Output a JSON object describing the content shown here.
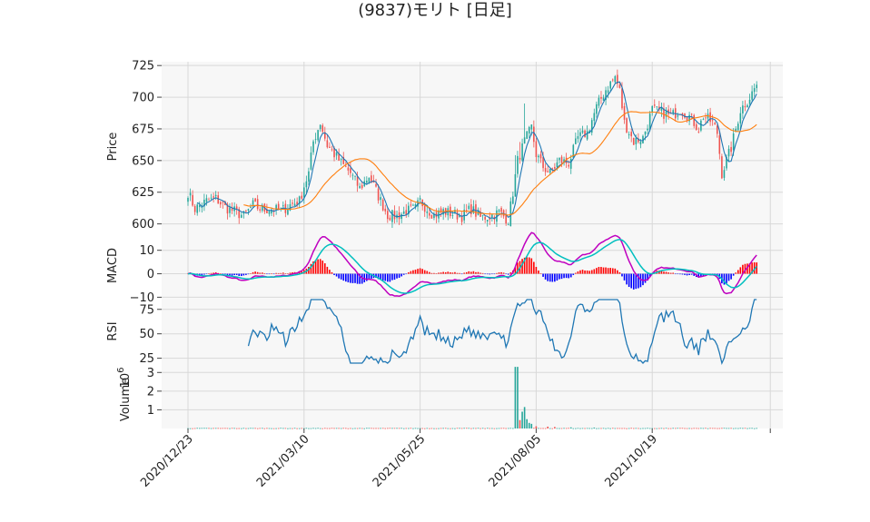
{
  "title": "(9837)モリト [日足]",
  "chart_data": {
    "type": "candlestick",
    "title": "(9837)モリト [日足]",
    "x_tick_labels": [
      "2020/12/23",
      "2021/03/10",
      "2021/05/25",
      "2021/08/05",
      "2021/10/19"
    ],
    "x_tick_index": [
      0,
      50,
      100,
      150,
      200
    ],
    "n_days": 246,
    "panels": {
      "price": {
        "ylabel": "Price",
        "ylim": [
          594,
          728
        ],
        "yticks": [
          600,
          625,
          650,
          675,
          700,
          725
        ],
        "anchors": [
          [
            0,
            625
          ],
          [
            3,
            612
          ],
          [
            8,
            618
          ],
          [
            12,
            620
          ],
          [
            16,
            613
          ],
          [
            20,
            610
          ],
          [
            24,
            606
          ],
          [
            28,
            615
          ],
          [
            32,
            611
          ],
          [
            36,
            612
          ],
          [
            40,
            610
          ],
          [
            44,
            615
          ],
          [
            48,
            618
          ],
          [
            50,
            630
          ],
          [
            52,
            640
          ],
          [
            54,
            665
          ],
          [
            57,
            680
          ],
          [
            60,
            662
          ],
          [
            63,
            655
          ],
          [
            66,
            648
          ],
          [
            70,
            640
          ],
          [
            74,
            628
          ],
          [
            78,
            638
          ],
          [
            82,
            622
          ],
          [
            86,
            607
          ],
          [
            90,
            606
          ],
          [
            94,
            610
          ],
          [
            98,
            612
          ],
          [
            100,
            618
          ],
          [
            103,
            612
          ],
          [
            106,
            607
          ],
          [
            110,
            610
          ],
          [
            114,
            608
          ],
          [
            118,
            606
          ],
          [
            122,
            612
          ],
          [
            126,
            605
          ],
          [
            130,
            606
          ],
          [
            134,
            609
          ],
          [
            138,
            603
          ],
          [
            140,
            625
          ],
          [
            142,
            650
          ],
          [
            145,
            665
          ],
          [
            148,
            676
          ],
          [
            150,
            655
          ],
          [
            153,
            645
          ],
          [
            156,
            640
          ],
          [
            160,
            650
          ],
          [
            164,
            648
          ],
          [
            168,
            668
          ],
          [
            172,
            672
          ],
          [
            176,
            692
          ],
          [
            180,
            706
          ],
          [
            184,
            716
          ],
          [
            186,
            705
          ],
          [
            188,
            680
          ],
          [
            192,
            665
          ],
          [
            196,
            668
          ],
          [
            200,
            690
          ],
          [
            204,
            688
          ],
          [
            208,
            685
          ],
          [
            212,
            690
          ],
          [
            216,
            685
          ],
          [
            220,
            675
          ],
          [
            222,
            685
          ],
          [
            226,
            680
          ],
          [
            228,
            672
          ],
          [
            230,
            640
          ],
          [
            234,
            660
          ],
          [
            238,
            690
          ],
          [
            242,
            700
          ],
          [
            245,
            710
          ]
        ],
        "ma_fast_period": 5,
        "ma_slow_period": 25,
        "colors": {
          "up": "#26a69a",
          "down": "#ef5350",
          "ma_fast": "#1f77b4",
          "ma_slow": "#ff7f0e"
        }
      },
      "macd": {
        "ylabel": "MACD",
        "ylim": [
          -11,
          18
        ],
        "yticks": [
          -10,
          0,
          10
        ],
        "colors": {
          "macd": "#bf00bf",
          "signal": "#00bfbf",
          "hist_pos": "#ff0000",
          "hist_neg": "#0000ff"
        }
      },
      "rsi": {
        "ylabel": "RSI",
        "ylim": [
          20,
          85
        ],
        "yticks": [
          25,
          50,
          75
        ],
        "period": 14,
        "color": "#1f77b4"
      },
      "volume": {
        "ylabel": "Volume",
        "multiplier_base": "10",
        "multiplier_exp": "6",
        "ylim": [
          0,
          3.5
        ],
        "yticks": [
          1,
          2,
          3
        ],
        "baseline_millions": 0.02,
        "spikes": [
          [
            141,
            3.3
          ],
          [
            142,
            3.3
          ],
          [
            143,
            0.45
          ],
          [
            144,
            0.9
          ],
          [
            145,
            1.15
          ],
          [
            146,
            0.5
          ],
          [
            147,
            0.3
          ],
          [
            148,
            0.25
          ],
          [
            150,
            0.12
          ],
          [
            155,
            0.1
          ],
          [
            158,
            0.08
          ],
          [
            165,
            0.06
          ],
          [
            175,
            0.05
          ]
        ]
      }
    }
  }
}
